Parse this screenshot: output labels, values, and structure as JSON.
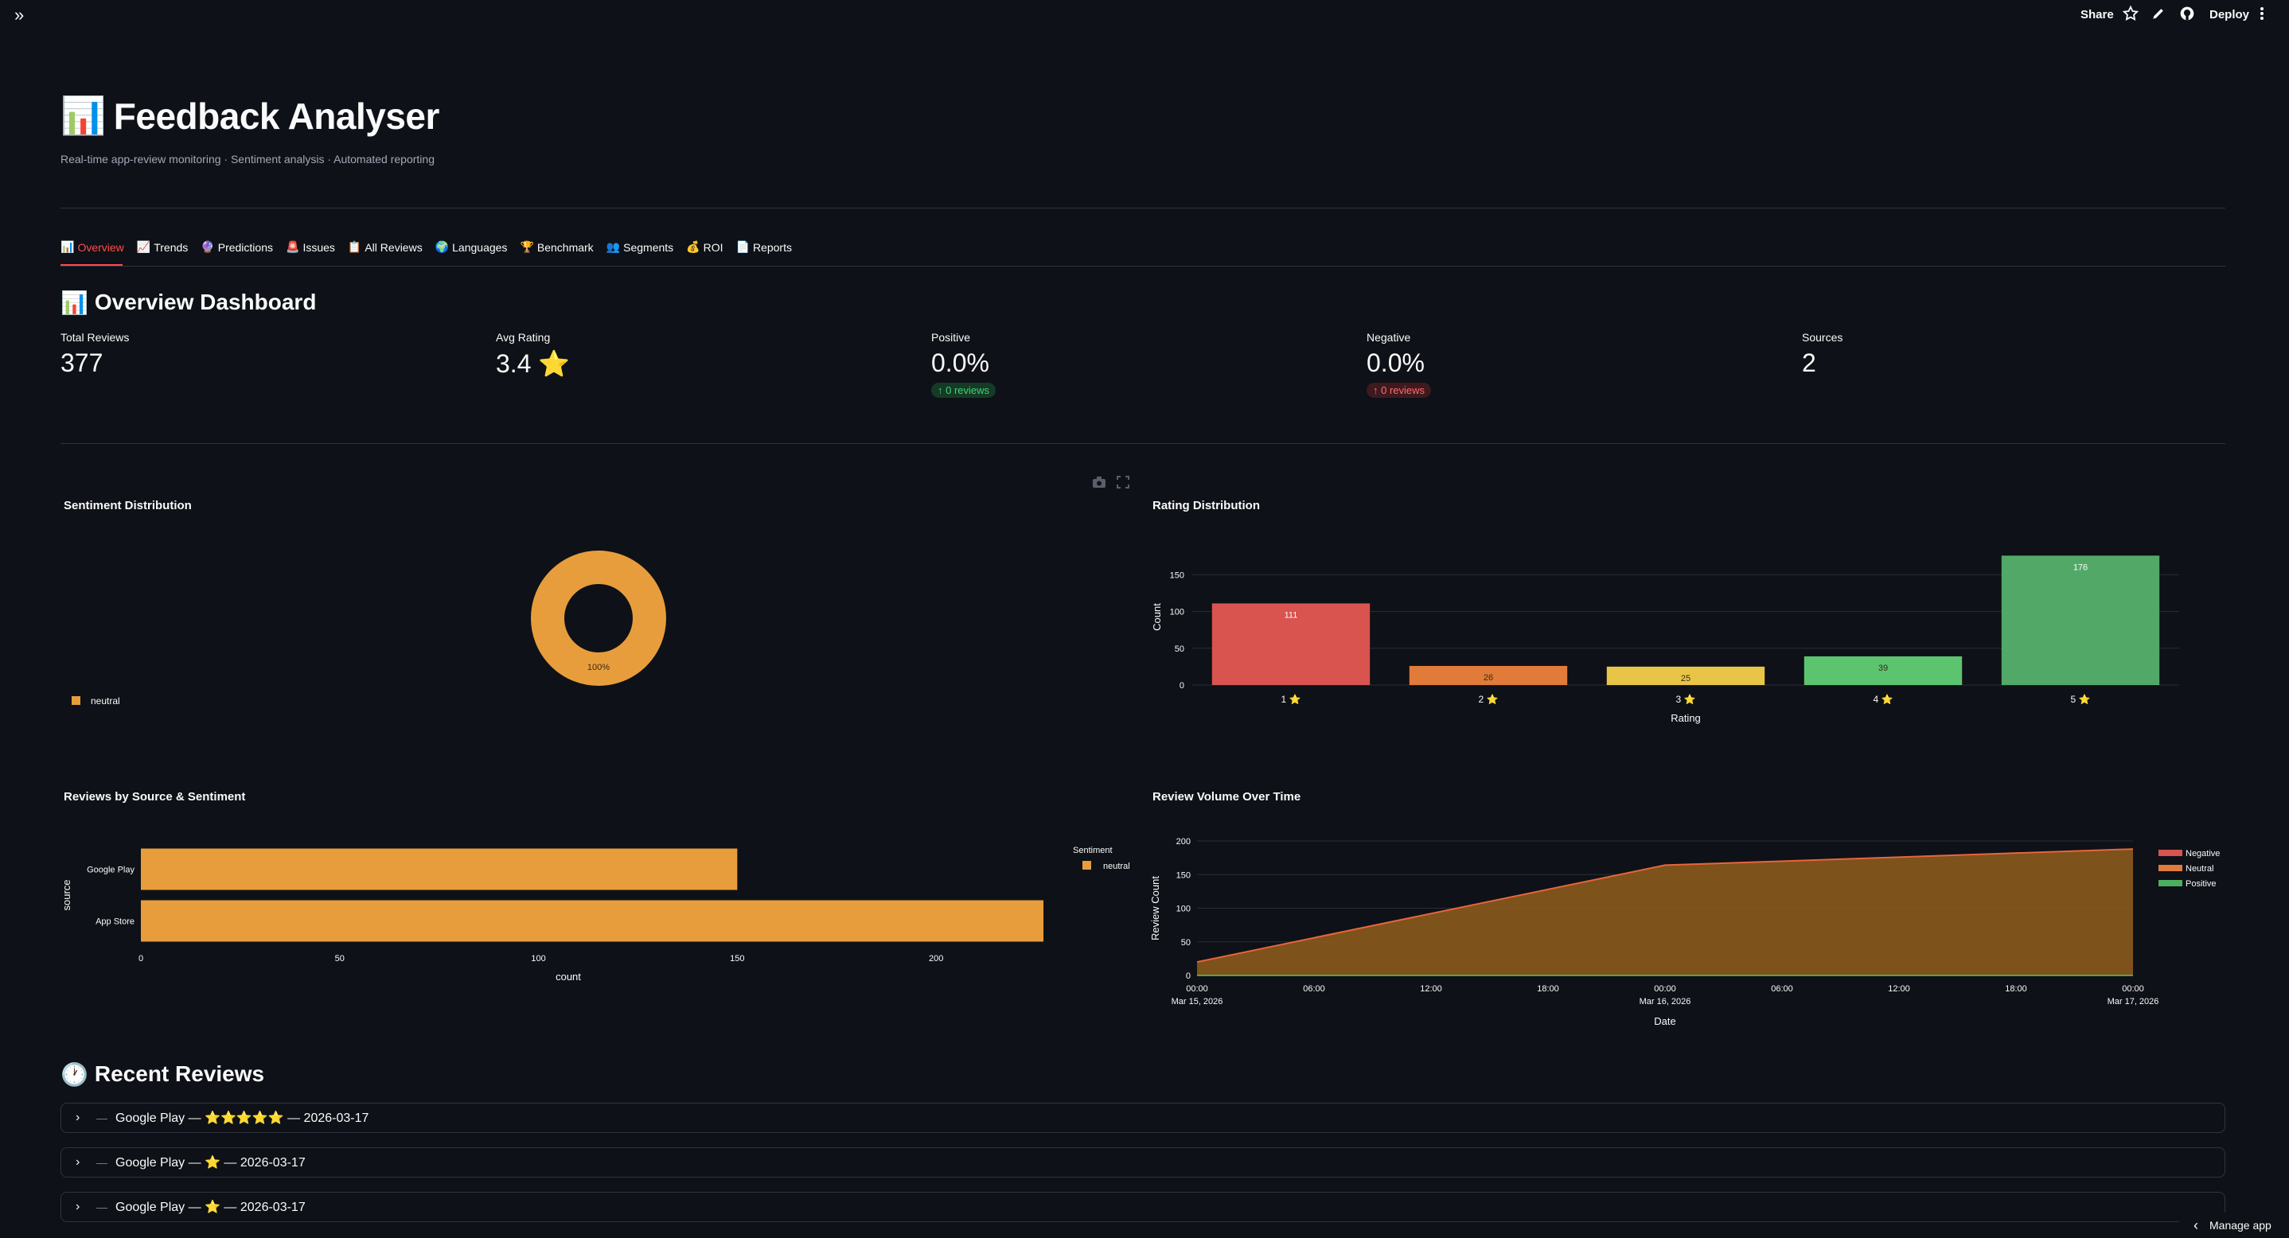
{
  "toolbar": {
    "share": "Share",
    "deploy": "Deploy"
  },
  "header": {
    "emoji": "📊",
    "title": "Feedback Analyser",
    "subtitle": "Real-time app-review monitoring · Sentiment analysis · Automated reporting"
  },
  "tabs": [
    {
      "icon": "📊",
      "label": "Overview",
      "active": true
    },
    {
      "icon": "📈",
      "label": "Trends"
    },
    {
      "icon": "🔮",
      "label": "Predictions"
    },
    {
      "icon": "🚨",
      "label": "Issues"
    },
    {
      "icon": "📋",
      "label": "All Reviews"
    },
    {
      "icon": "🌍",
      "label": "Languages"
    },
    {
      "icon": "🏆",
      "label": "Benchmark"
    },
    {
      "icon": "👥",
      "label": "Segments"
    },
    {
      "icon": "💰",
      "label": "ROI"
    },
    {
      "icon": "📄",
      "label": "Reports"
    }
  ],
  "overview": {
    "emoji": "📊",
    "title": "Overview Dashboard"
  },
  "metrics": [
    {
      "label": "Total Reviews",
      "value": "377"
    },
    {
      "label": "Avg Rating",
      "value": "3.4 ⭐"
    },
    {
      "label": "Positive",
      "value": "0.0%",
      "delta": "↑ 0 reviews",
      "delta_type": "pos"
    },
    {
      "label": "Negative",
      "value": "0.0%",
      "delta": "↑ 0 reviews",
      "delta_type": "neg"
    },
    {
      "label": "Sources",
      "value": "2"
    }
  ],
  "colors": {
    "accent": "#ff4b4b",
    "neutral": "#e89d3c",
    "negative": "#d9534f",
    "positive": "#4caf60",
    "bg": "#0e1117"
  },
  "chart_data": [
    {
      "type": "pie",
      "title": "Sentiment Distribution",
      "categories": [
        "neutral"
      ],
      "values": [
        100
      ],
      "labels": [
        "100%"
      ],
      "legend": [
        "neutral"
      ],
      "legend_position": "left"
    },
    {
      "type": "bar",
      "title": "Rating Distribution",
      "xlabel": "Rating",
      "ylabel": "Count",
      "categories": [
        "1 ⭐",
        "2 ⭐",
        "3 ⭐",
        "4 ⭐",
        "5 ⭐"
      ],
      "values": [
        111,
        26,
        25,
        39,
        176
      ],
      "data_labels": [
        "111",
        "26",
        "25",
        "39",
        "176"
      ],
      "colors": [
        "#d9534f",
        "#e07b39",
        "#e8c547",
        "#5cc46e",
        "#52a967"
      ],
      "yticks": [
        "0",
        "50",
        "100",
        "150"
      ],
      "ylim": [
        0,
        185
      ],
      "grid": true
    },
    {
      "type": "bar",
      "orientation": "horizontal",
      "title": "Reviews by Source & Sentiment",
      "xlabel": "count",
      "ylabel": "source",
      "categories": [
        "Google Play",
        "App Store"
      ],
      "series": [
        {
          "name": "neutral",
          "values": [
            150,
            227
          ]
        }
      ],
      "xticks": [
        "0",
        "50",
        "100",
        "150",
        "200"
      ],
      "xlim": [
        0,
        235
      ],
      "legend_title": "Sentiment",
      "legend": [
        "neutral"
      ],
      "legend_position": "right"
    },
    {
      "type": "area",
      "title": "Review Volume Over Time",
      "xlabel": "Date",
      "ylabel": "Review Count",
      "x_ticks": [
        "00:00",
        "06:00",
        "12:00",
        "18:00",
        "00:00",
        "06:00",
        "12:00",
        "18:00",
        "00:00"
      ],
      "x_dates": [
        "Mar 15, 2026",
        "",
        "",
        "",
        "Mar 16, 2026",
        "",
        "",
        "",
        "Mar 17, 2026"
      ],
      "x": [
        "2026-03-15 00:00",
        "2026-03-16 00:00",
        "2026-03-17 00:00"
      ],
      "series": [
        {
          "name": "Negative",
          "values": [
            0,
            0,
            0
          ]
        },
        {
          "name": "Neutral",
          "values": [
            20,
            164,
            188
          ]
        },
        {
          "name": "Positive",
          "values": [
            0,
            0,
            0
          ]
        }
      ],
      "yticks": [
        "0",
        "50",
        "100",
        "150",
        "200"
      ],
      "ylim": [
        0,
        200
      ],
      "legend": [
        "Negative",
        "Neutral",
        "Positive"
      ],
      "legend_position": "right"
    }
  ],
  "recent": {
    "emoji": "🕐",
    "title": "Recent Reviews",
    "items": [
      {
        "label": "Google Play — ⭐⭐⭐⭐⭐ — 2026-03-17"
      },
      {
        "label": "Google Play — ⭐ — 2026-03-17"
      },
      {
        "label": "Google Play — ⭐ — 2026-03-17"
      }
    ]
  },
  "manage_app": "Manage app"
}
